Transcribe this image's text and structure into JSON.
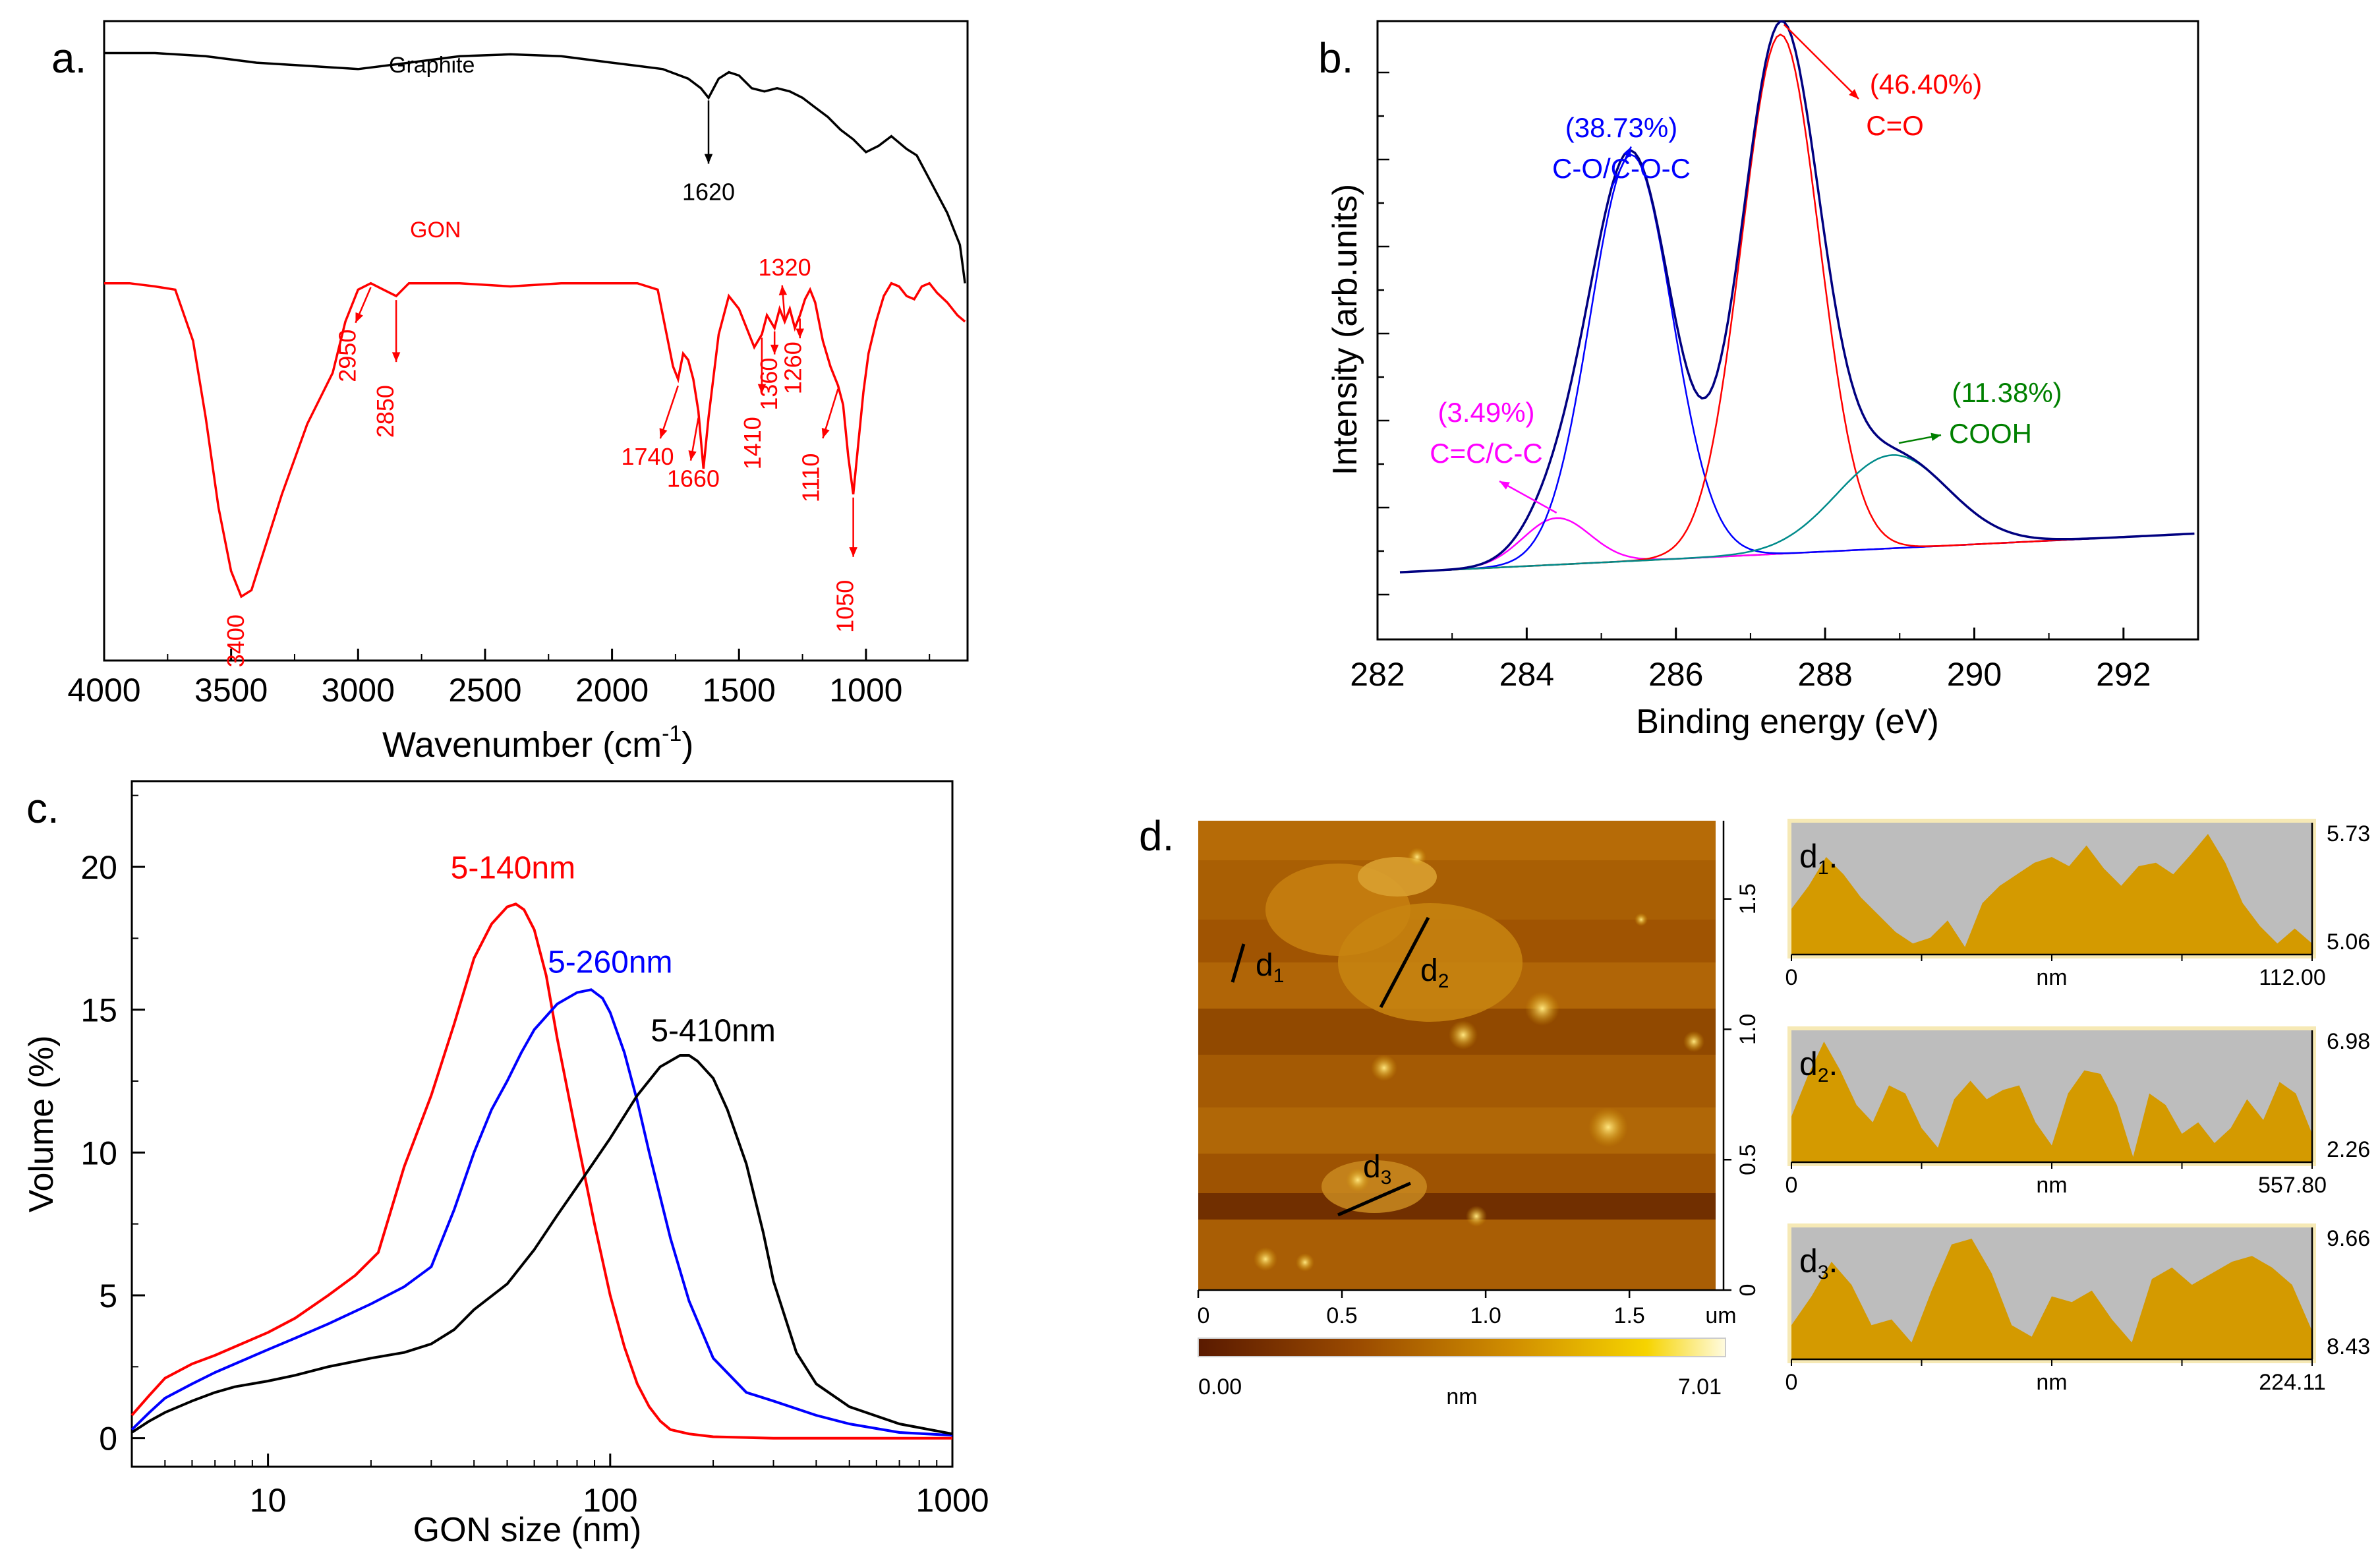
{
  "colors": {
    "black": "#000000",
    "red": "#ff0000",
    "blue": "#0000ff",
    "magenta": "#ff00ff",
    "green": "#008000",
    "teal": "#008b8b",
    "olive": "#808000",
    "navy": "#000080",
    "afm_fill": "#d49a00",
    "afm_bg": "#bdbdbd",
    "afm_frame": "#f5e6a8"
  },
  "chart_data": [
    {
      "panel": "a.",
      "type": "line",
      "xlabel": "Wavenumber (cm",
      "xlabel_sup": "-1",
      "xlabel_tail": ")",
      "xlim": [
        4000,
        600
      ],
      "xticks": [
        "4000",
        "3500",
        "3000",
        "2500",
        "2000",
        "1500",
        "1000"
      ],
      "xtick_values": [
        4000,
        3500,
        3000,
        2500,
        2000,
        1500,
        1000
      ],
      "series": [
        {
          "name": "Graphite",
          "color": "#000000",
          "x": [
            4000,
            3800,
            3600,
            3400,
            3200,
            3000,
            2800,
            2600,
            2400,
            2200,
            2000,
            1900,
            1800,
            1700,
            1650,
            1620,
            1580,
            1540,
            1500,
            1450,
            1400,
            1350,
            1300,
            1250,
            1200,
            1150,
            1100,
            1050,
            1000,
            950,
            900,
            870,
            840,
            800,
            760,
            720,
            680,
            650,
            630,
            620,
            610
          ],
          "y": [
            95,
            95,
            94.5,
            93.5,
            93,
            92.5,
            93.5,
            94.5,
            94.8,
            94.5,
            93.5,
            93,
            92.5,
            91,
            89.5,
            88,
            91,
            92,
            91.5,
            89.5,
            89,
            89.5,
            89,
            88,
            86.5,
            85,
            83,
            81.5,
            79.5,
            80.5,
            82,
            81,
            80,
            79,
            76,
            73,
            70,
            67,
            65,
            62,
            59
          ]
        },
        {
          "name": "GON",
          "color": "#ff0000",
          "x": [
            4000,
            3900,
            3800,
            3720,
            3650,
            3600,
            3550,
            3500,
            3460,
            3420,
            3380,
            3300,
            3200,
            3100,
            3050,
            3000,
            2950,
            2900,
            2850,
            2800,
            2600,
            2400,
            2200,
            2000,
            1900,
            1820,
            1790,
            1760,
            1740,
            1720,
            1700,
            1680,
            1660,
            1640,
            1620,
            1580,
            1540,
            1500,
            1470,
            1440,
            1410,
            1390,
            1360,
            1340,
            1320,
            1300,
            1280,
            1260,
            1240,
            1220,
            1200,
            1170,
            1140,
            1110,
            1090,
            1070,
            1050,
            1030,
            1010,
            990,
            960,
            930,
            900,
            870,
            840,
            810,
            780,
            750,
            720,
            680,
            640,
            610
          ],
          "y": [
            59,
            59,
            58.5,
            58,
            50,
            38,
            24,
            14,
            10,
            11,
            16,
            26,
            37,
            45,
            53,
            58,
            59,
            58,
            57,
            59,
            59,
            58.5,
            59,
            59,
            59,
            58,
            52,
            46,
            44,
            48,
            47,
            44,
            39,
            30,
            38,
            51,
            57,
            55,
            52,
            49,
            51,
            54,
            52,
            55,
            53,
            55,
            52,
            54,
            56.5,
            58,
            56,
            50,
            46,
            43,
            40,
            32,
            26,
            34,
            42,
            48,
            53,
            57,
            59,
            58.5,
            57,
            56.5,
            58.5,
            59,
            57.5,
            56,
            54,
            53
          ]
        }
      ],
      "graphite_label": "Graphite",
      "gon_label": "GON",
      "annotations": [
        {
          "text": "1620",
          "series": "Graphite",
          "x": 1620
        },
        {
          "text": "2950",
          "series": "GON",
          "x": 2950
        },
        {
          "text": "2850",
          "series": "GON",
          "x": 2850
        },
        {
          "text": "1740",
          "series": "GON",
          "x": 1740
        },
        {
          "text": "1660",
          "series": "GON",
          "x": 1660
        },
        {
          "text": "1410",
          "series": "GON",
          "x": 1410
        },
        {
          "text": "1360",
          "series": "GON",
          "x": 1360
        },
        {
          "text": "1320",
          "series": "GON",
          "x": 1320
        },
        {
          "text": "1260",
          "series": "GON",
          "x": 1260
        },
        {
          "text": "1110",
          "series": "GON",
          "x": 1110
        },
        {
          "text": "1050",
          "series": "GON",
          "x": 1050
        },
        {
          "text": "3400",
          "series": "GON",
          "x": 3400
        }
      ]
    },
    {
      "panel": "b.",
      "type": "line",
      "xlabel": "Binding energy (eV)",
      "ylabel": "Intensity (arb.units)",
      "xlim": [
        282,
        293
      ],
      "xticks": [
        "282",
        "284",
        "286",
        "288",
        "290",
        "292"
      ],
      "xtick_values": [
        282,
        284,
        286,
        288,
        290,
        292
      ],
      "background": {
        "a": 0.02,
        "b": 0.06
      },
      "components": [
        {
          "name": "C=C/C-C",
          "color": "#ff00ff",
          "center": 284.4,
          "amp": 0.07,
          "sigma": 0.45
        },
        {
          "name": "C-O/C-O-C",
          "color": "#0000ff",
          "center": 285.4,
          "amp": 0.61,
          "sigma": 0.55
        },
        {
          "name": "C=O",
          "color": "#ff0000",
          "center": 287.4,
          "amp": 0.78,
          "sigma": 0.52
        },
        {
          "name": "COOH",
          "color": "#008b8b",
          "center": 288.9,
          "amp": 0.14,
          "sigma": 0.75
        }
      ],
      "envelope_color": "#000080",
      "labels": [
        {
          "pct": "(3.49%)",
          "name": "C=C/C-C",
          "color": "#ff00ff"
        },
        {
          "pct": "(38.73%)",
          "name": "C-O/C-O-C",
          "color": "#0000ff"
        },
        {
          "pct": "(46.40%)",
          "name": "C=O",
          "color": "#ff0000"
        },
        {
          "pct": "(11.38%)",
          "name": "COOH",
          "color": "#008000"
        }
      ]
    },
    {
      "panel": "c.",
      "type": "line",
      "xscale": "log",
      "xlabel": "GON size (nm)",
      "ylabel": "Volume (%)",
      "xlim": [
        4,
        1000
      ],
      "ylim": [
        -1,
        23
      ],
      "xticks": [
        "10",
        "100",
        "1000"
      ],
      "xtick_values": [
        10,
        100,
        1000
      ],
      "yticks": [
        "0",
        "5",
        "10",
        "15",
        "20"
      ],
      "ytick_values": [
        0,
        5,
        10,
        15,
        20
      ],
      "series": [
        {
          "name": "5-140nm",
          "color": "#ff0000",
          "x": [
            4,
            4.5,
            5,
            6,
            7,
            8,
            10,
            12,
            15,
            18,
            21,
            25,
            30,
            35,
            40,
            45,
            50,
            53,
            56,
            60,
            65,
            70,
            80,
            90,
            100,
            110,
            120,
            130,
            140,
            150,
            170,
            200,
            300,
            500,
            1000
          ],
          "y": [
            0.8,
            1.5,
            2.1,
            2.6,
            2.9,
            3.2,
            3.7,
            4.2,
            5.0,
            5.7,
            6.5,
            9.5,
            12,
            14.5,
            16.8,
            18.0,
            18.6,
            18.7,
            18.5,
            17.8,
            16.2,
            14,
            10.5,
            7.5,
            5.0,
            3.2,
            1.9,
            1.1,
            0.6,
            0.3,
            0.15,
            0.05,
            0,
            0,
            0
          ]
        },
        {
          "name": "5-260nm",
          "color": "#0000ff",
          "x": [
            4,
            4.5,
            5,
            6,
            7,
            8,
            10,
            12,
            15,
            20,
            25,
            30,
            35,
            40,
            45,
            50,
            55,
            60,
            70,
            80,
            88,
            95,
            100,
            110,
            120,
            130,
            150,
            170,
            200,
            250,
            300,
            400,
            500,
            700,
            1000
          ],
          "y": [
            0.3,
            0.9,
            1.4,
            1.9,
            2.3,
            2.6,
            3.1,
            3.5,
            4.0,
            4.7,
            5.3,
            6.0,
            8.0,
            10.0,
            11.5,
            12.5,
            13.5,
            14.3,
            15.2,
            15.6,
            15.7,
            15.4,
            14.9,
            13.5,
            11.8,
            10.0,
            7.0,
            4.8,
            2.8,
            1.6,
            1.3,
            0.8,
            0.5,
            0.2,
            0.1
          ]
        },
        {
          "name": "5-410nm",
          "color": "#000000",
          "x": [
            4,
            4.5,
            5,
            6,
            7,
            8,
            10,
            12,
            15,
            20,
            25,
            30,
            35,
            40,
            50,
            60,
            70,
            80,
            100,
            120,
            140,
            160,
            170,
            180,
            200,
            220,
            250,
            280,
            300,
            350,
            400,
            500,
            700,
            1000
          ],
          "y": [
            0.2,
            0.6,
            0.9,
            1.3,
            1.6,
            1.8,
            2.0,
            2.2,
            2.5,
            2.8,
            3.0,
            3.3,
            3.8,
            4.5,
            5.4,
            6.6,
            7.8,
            8.8,
            10.5,
            12.0,
            13.0,
            13.4,
            13.4,
            13.2,
            12.6,
            11.5,
            9.6,
            7.2,
            5.5,
            3.0,
            1.9,
            1.1,
            0.5,
            0.15
          ]
        }
      ]
    },
    {
      "panel": "d.",
      "type": "heatmap",
      "image_axis_ticks": [
        "0",
        "0.5",
        "1.0",
        "1.5"
      ],
      "image_axis_unit": "um",
      "image_right_ticks": [
        "0",
        "0.5",
        "1.0",
        "1.5"
      ],
      "scan_size_um": 1.8,
      "line_labels": [
        "d",
        "d",
        "d"
      ],
      "line_subs": [
        "1",
        "2",
        "3"
      ],
      "colorbar": {
        "min": "0.00",
        "max": "7.01",
        "unit": "nm"
      },
      "profiles": [
        {
          "label": "d",
          "sub": "1",
          "max": "5.73",
          "min": "5.06",
          "xmin": "0",
          "xunit": "nm",
          "xmax": "112.00",
          "values": [
            0.35,
            0.55,
            0.8,
            0.65,
            0.45,
            0.3,
            0.15,
            0.05,
            0.1,
            0.25,
            0.02,
            0.4,
            0.55,
            0.65,
            0.75,
            0.8,
            0.72,
            0.9,
            0.7,
            0.55,
            0.72,
            0.75,
            0.65,
            0.82,
            1.0,
            0.75,
            0.4,
            0.2,
            0.05,
            0.18,
            0.05
          ]
        },
        {
          "label": "d",
          "sub": "2",
          "max": "6.98",
          "min": "2.26",
          "xmin": "0",
          "xunit": "nm",
          "xmax": "557.80",
          "values": [
            0.35,
            0.7,
            1.0,
            0.75,
            0.45,
            0.3,
            0.62,
            0.55,
            0.25,
            0.08,
            0.5,
            0.66,
            0.5,
            0.58,
            0.62,
            0.3,
            0.1,
            0.55,
            0.75,
            0.72,
            0.45,
            0.0,
            0.55,
            0.45,
            0.2,
            0.3,
            0.12,
            0.25,
            0.5,
            0.32,
            0.65,
            0.55,
            0.2
          ]
        },
        {
          "label": "d",
          "sub": "3",
          "max": "9.66",
          "min": "8.43",
          "xmin": "0",
          "xunit": "nm",
          "xmax": "224.11",
          "values": [
            0.25,
            0.5,
            0.8,
            0.6,
            0.25,
            0.3,
            0.1,
            0.55,
            0.95,
            1.0,
            0.7,
            0.25,
            0.15,
            0.5,
            0.45,
            0.55,
            0.3,
            0.1,
            0.65,
            0.75,
            0.6,
            0.7,
            0.8,
            0.85,
            0.75,
            0.6,
            0.2
          ]
        }
      ]
    }
  ]
}
